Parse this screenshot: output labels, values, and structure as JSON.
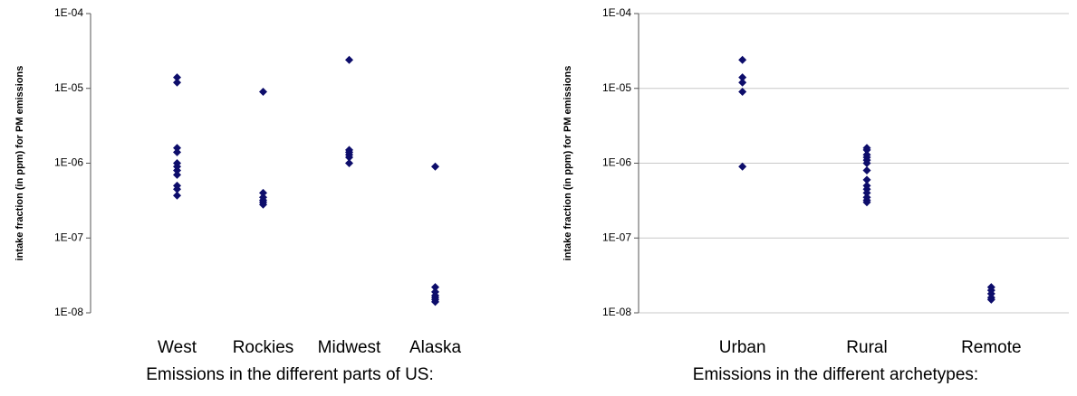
{
  "chart_data": [
    {
      "type": "strip",
      "ylabel": "intake fraction (in ppm) for PM emissions",
      "xlabel": "Emissions in the different parts of US:",
      "categories": [
        "West",
        "Rockies",
        "Midwest",
        "Alaska"
      ],
      "values": [
        [
          1.4e-05,
          1.2e-05,
          1.6e-06,
          1.4e-06,
          1e-06,
          9e-07,
          8e-07,
          7e-07,
          5e-07,
          4.5e-07,
          3.7e-07
        ],
        [
          9e-06,
          4e-07,
          3.5e-07,
          3.2e-07,
          3e-07,
          2.8e-07
        ],
        [
          2.4e-05,
          1.5e-06,
          1.4e-06,
          1.3e-06,
          1.2e-06,
          1e-06
        ],
        [
          9e-07,
          2.2e-08,
          1.9e-08,
          1.7e-08,
          1.6e-08,
          1.5e-08,
          1.4e-08
        ]
      ],
      "color": "#0d0d6b",
      "log_y": true,
      "grid": false,
      "ylim": [
        1e-08,
        0.0001
      ],
      "yticks": [
        {
          "value": 1e-08,
          "label": "1E-08"
        },
        {
          "value": 1e-07,
          "label": "1E-07"
        },
        {
          "value": 1e-06,
          "label": "1E-06"
        },
        {
          "value": 1e-05,
          "label": "1E-05"
        },
        {
          "value": 0.0001,
          "label": "1E-04"
        }
      ]
    },
    {
      "type": "strip",
      "ylabel": "intake fraction (in ppm) for PM emissions",
      "xlabel": "Emissions in the different archetypes:",
      "categories": [
        "Urban",
        "Rural",
        "Remote"
      ],
      "values": [
        [
          2.4e-05,
          1.4e-05,
          1.2e-05,
          9e-06,
          9e-07
        ],
        [
          1.6e-06,
          1.5e-06,
          1.3e-06,
          1.2e-06,
          1.1e-06,
          1e-06,
          8e-07,
          6e-07,
          5e-07,
          4.5e-07,
          4e-07,
          3.5e-07,
          3.2e-07,
          3e-07
        ],
        [
          2.2e-08,
          2e-08,
          1.8e-08,
          1.6e-08,
          1.5e-08
        ]
      ],
      "color": "#0d0d6b",
      "log_y": true,
      "grid": true,
      "ylim": [
        1e-08,
        0.0001
      ],
      "yticks": [
        {
          "value": 1e-08,
          "label": "1E-08"
        },
        {
          "value": 1e-07,
          "label": "1E-07"
        },
        {
          "value": 1e-06,
          "label": "1E-06"
        },
        {
          "value": 1e-05,
          "label": "1E-05"
        },
        {
          "value": 0.0001,
          "label": "1E-04"
        }
      ]
    }
  ]
}
